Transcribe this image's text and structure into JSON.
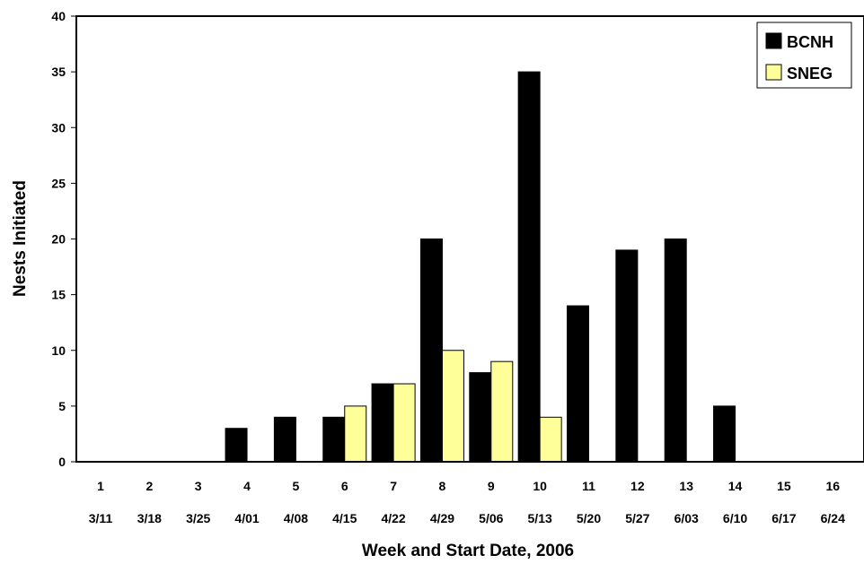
{
  "chart_data": {
    "type": "bar",
    "title": "",
    "xlabel": "Week and Start Date, 2006",
    "ylabel": "Nests Initiated",
    "ylim": [
      0,
      40
    ],
    "yticks": [
      0,
      5,
      10,
      15,
      20,
      25,
      30,
      35,
      40
    ],
    "grid": false,
    "legend_position": "top-right",
    "categories": [
      "1",
      "2",
      "3",
      "4",
      "5",
      "6",
      "7",
      "8",
      "9",
      "10",
      "11",
      "12",
      "13",
      "14",
      "15",
      "16"
    ],
    "dates": [
      "3/11",
      "3/18",
      "3/25",
      "4/01",
      "4/08",
      "4/15",
      "4/22",
      "4/29",
      "5/06",
      "5/13",
      "5/20",
      "5/27",
      "6/03",
      "6/10",
      "6/17",
      "6/24"
    ],
    "series": [
      {
        "name": "BCNH",
        "color": "#000000",
        "values": [
          0,
          0,
          0,
          3,
          4,
          4,
          7,
          20,
          8,
          35,
          14,
          19,
          20,
          5,
          0,
          0
        ]
      },
      {
        "name": "SNEG",
        "color": "#ffff99",
        "values": [
          0,
          0,
          0,
          0,
          0,
          5,
          7,
          10,
          9,
          4,
          0,
          0,
          0,
          0,
          0,
          0
        ]
      }
    ]
  }
}
